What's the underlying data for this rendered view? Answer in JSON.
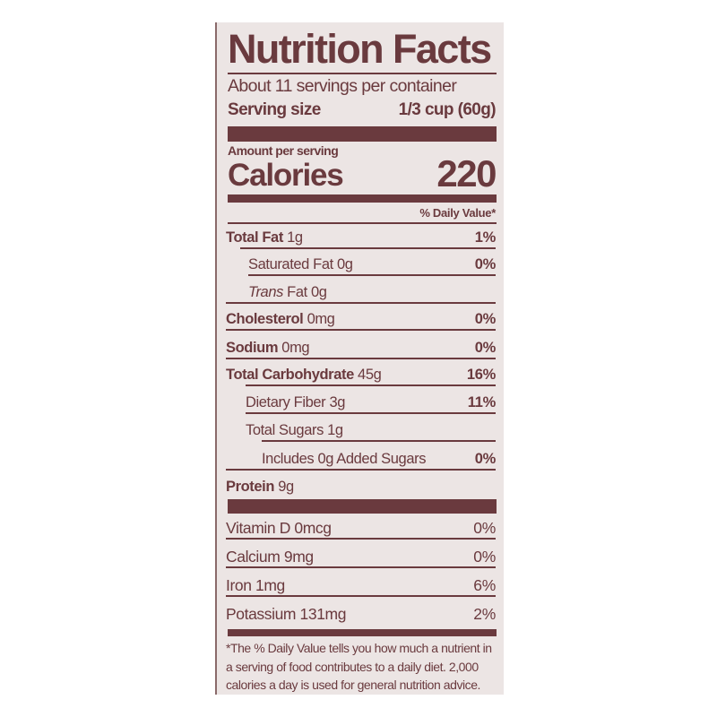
{
  "label": {
    "title": "Nutrition Facts",
    "servings_per_container": "About 11 servings per container",
    "serving_size_label": "Serving size",
    "serving_size_value": "1/3 cup (60g)",
    "amount_per_serving": "Amount per serving",
    "calories_label": "Calories",
    "calories_value": "220",
    "daily_value_header": "% Daily Value*",
    "nutrients": [
      {
        "name": "Total Fat",
        "amount": "1g",
        "dv": "1%"
      },
      {
        "name": "Saturated Fat",
        "amount": "0g",
        "dv": "0%"
      },
      {
        "name": "Trans",
        "amount": "Fat 0g",
        "dv": ""
      },
      {
        "name": "Cholesterol",
        "amount": "0mg",
        "dv": "0%"
      },
      {
        "name": "Sodium",
        "amount": "0mg",
        "dv": "0%"
      },
      {
        "name": "Total Carbohydrate",
        "amount": "45g",
        "dv": "16%"
      },
      {
        "name": "Dietary Fiber",
        "amount": "3g",
        "dv": "11%"
      },
      {
        "name": "Total Sugars",
        "amount": "1g",
        "dv": ""
      },
      {
        "name": "Includes 0g Added Sugars",
        "amount": "",
        "dv": "0%"
      },
      {
        "name": "Protein",
        "amount": "9g",
        "dv": ""
      }
    ],
    "vitamins": [
      {
        "name": "Vitamin D 0mcg",
        "dv": "0%"
      },
      {
        "name": "Calcium 9mg",
        "dv": "0%"
      },
      {
        "name": "Iron 1mg",
        "dv": "6%"
      },
      {
        "name": "Potassium 131mg",
        "dv": "2%"
      }
    ],
    "footnote": "*The % Daily Value tells you how much a nutrient in a serving of food contributes to a daily diet. 2,000 calories a day is used for general nutrition advice.",
    "colors": {
      "ink": "#6a3a3e",
      "background": "#ece5e4"
    }
  }
}
